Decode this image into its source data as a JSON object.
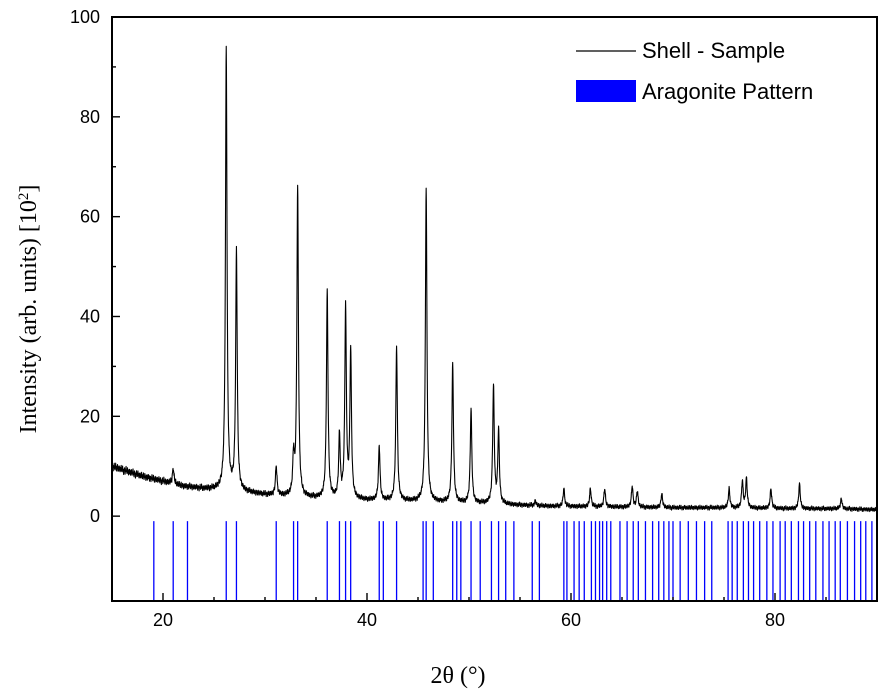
{
  "chart_data": {
    "type": "line",
    "title": "",
    "xlabel": "2θ (°)",
    "ylabel": "Intensity (arb. units) [10",
    "ylabel_sup": "2",
    "ylabel_close": "]",
    "xlim": [
      15,
      90
    ],
    "ylim": [
      -17,
      100
    ],
    "x_ticks": [
      20,
      40,
      60,
      80
    ],
    "y_ticks": [
      0,
      20,
      40,
      60,
      80,
      100
    ],
    "grid": false,
    "legend_position": "top-right",
    "series": [
      {
        "name": "Shell - Sample",
        "color": "#000000",
        "baseline": [
          [
            15,
            10
          ],
          [
            18,
            8
          ],
          [
            20,
            7
          ],
          [
            22,
            6
          ],
          [
            24,
            5.5
          ],
          [
            26,
            5.2
          ],
          [
            28,
            4.8
          ],
          [
            30,
            4.3
          ],
          [
            32,
            4
          ],
          [
            34,
            3.7
          ],
          [
            36,
            3.5
          ],
          [
            40,
            3.2
          ],
          [
            44,
            3
          ],
          [
            48,
            2.7
          ],
          [
            52,
            2.5
          ],
          [
            55,
            2.2
          ],
          [
            58,
            2
          ],
          [
            62,
            1.9
          ],
          [
            66,
            1.8
          ],
          [
            70,
            1.7
          ],
          [
            74,
            1.7
          ],
          [
            78,
            1.6
          ],
          [
            82,
            1.5
          ],
          [
            86,
            1.5
          ],
          [
            90,
            1.3
          ]
        ],
        "peaks": [
          [
            21.0,
            9.5
          ],
          [
            26.2,
            94
          ],
          [
            27.2,
            53
          ],
          [
            31.1,
            10
          ],
          [
            32.8,
            11.5
          ],
          [
            33.2,
            66
          ],
          [
            36.1,
            45
          ],
          [
            37.3,
            16
          ],
          [
            37.9,
            41.5
          ],
          [
            38.4,
            33
          ],
          [
            41.2,
            14
          ],
          [
            42.9,
            34
          ],
          [
            45.8,
            66
          ],
          [
            48.4,
            30.5
          ],
          [
            50.2,
            21.5
          ],
          [
            52.4,
            26
          ],
          [
            52.9,
            17
          ],
          [
            56.5,
            3
          ],
          [
            59.3,
            5.5
          ],
          [
            61.9,
            5.5
          ],
          [
            63.3,
            5.5
          ],
          [
            66.0,
            6
          ],
          [
            66.5,
            5
          ],
          [
            68.9,
            4.5
          ],
          [
            75.5,
            5.5
          ],
          [
            76.8,
            7
          ],
          [
            77.2,
            7.5
          ],
          [
            79.6,
            5.5
          ],
          [
            82.4,
            6.5
          ],
          [
            86.5,
            3.5
          ]
        ]
      },
      {
        "name": "Aragonite Pattern",
        "color": "#0000ff",
        "type": "stick",
        "y_range": [
          -17,
          -1
        ],
        "positions": [
          19.1,
          21.0,
          22.4,
          26.2,
          27.2,
          31.1,
          32.8,
          33.2,
          36.1,
          37.3,
          37.9,
          38.4,
          41.2,
          41.6,
          42.9,
          45.5,
          45.8,
          46.5,
          48.4,
          48.8,
          49.2,
          50.2,
          51.1,
          52.2,
          52.9,
          53.6,
          54.4,
          56.2,
          56.9,
          59.3,
          59.6,
          60.3,
          60.8,
          61.3,
          62.0,
          62.4,
          62.8,
          63.1,
          63.5,
          63.9,
          64.8,
          65.5,
          66.1,
          66.6,
          67.3,
          68.0,
          68.6,
          69.1,
          69.6,
          70.0,
          70.7,
          71.5,
          72.3,
          73.1,
          73.8,
          75.4,
          75.8,
          76.3,
          76.9,
          77.4,
          77.9,
          78.5,
          79.2,
          79.8,
          80.5,
          81.0,
          81.6,
          82.3,
          82.8,
          83.4,
          84.0,
          84.7,
          85.3,
          85.9,
          86.4,
          87.1,
          87.8,
          88.4,
          88.9,
          89.5
        ]
      }
    ]
  }
}
